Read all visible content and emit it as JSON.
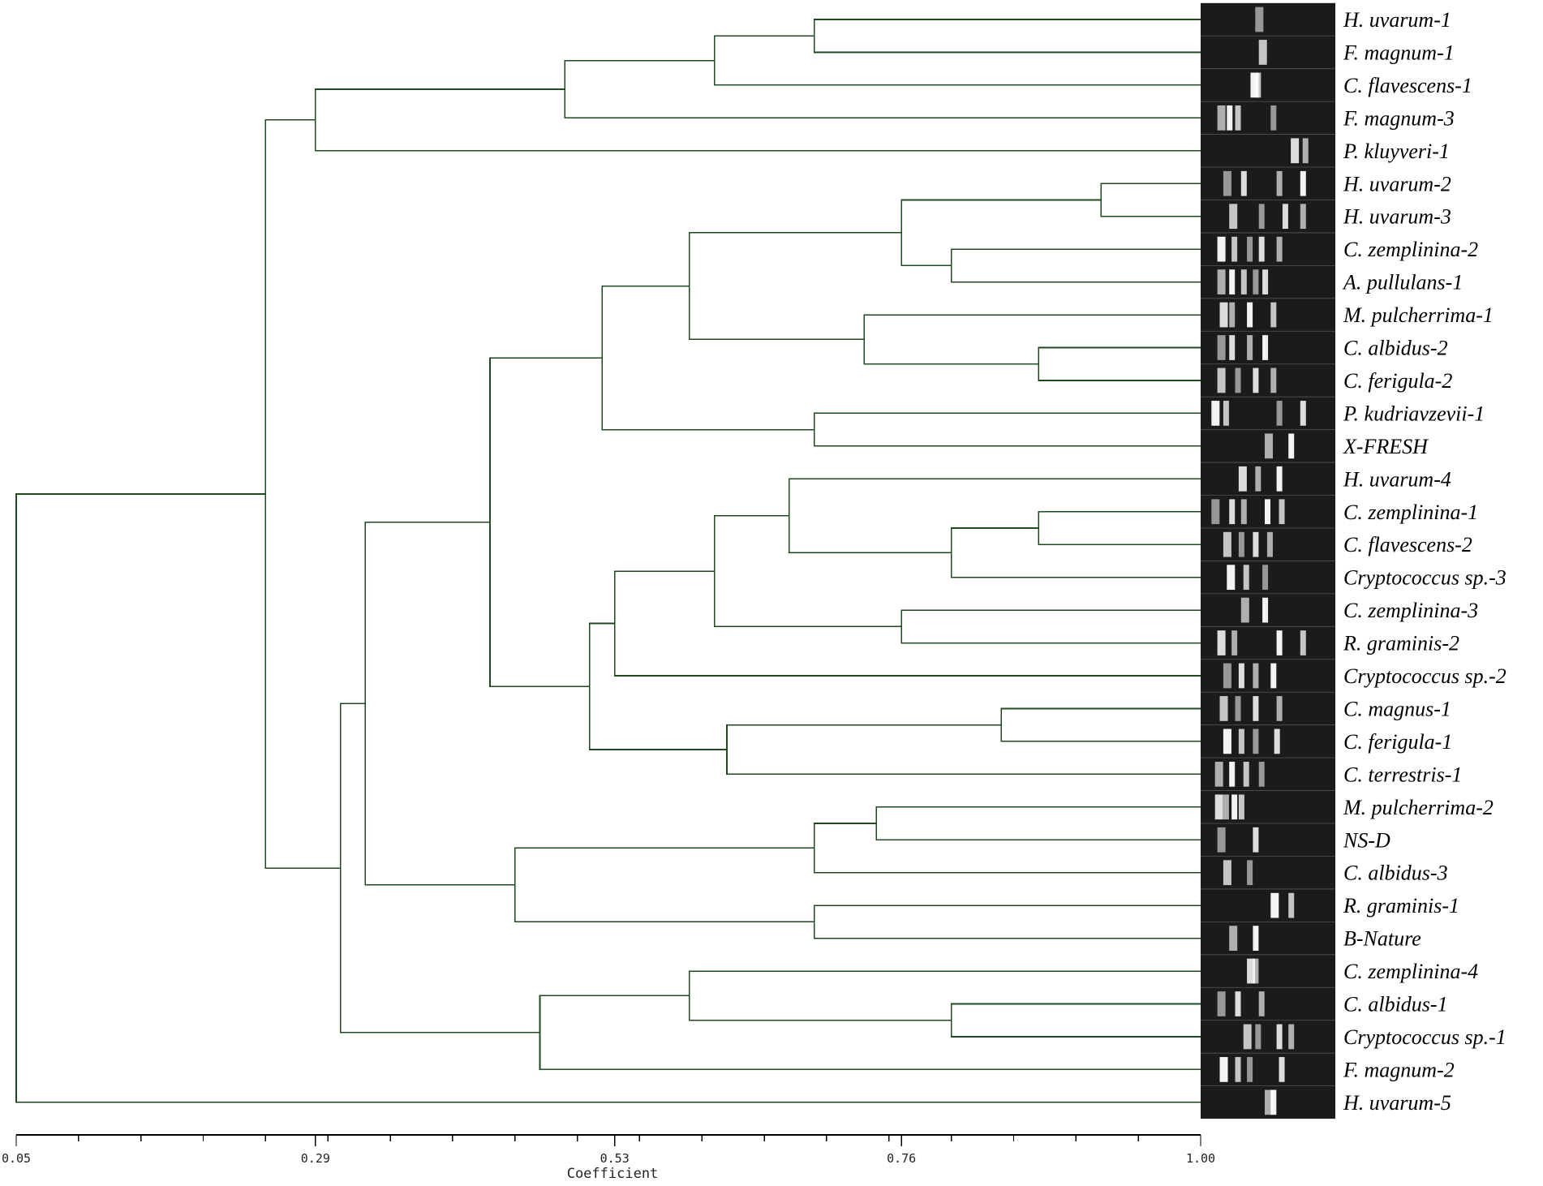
{
  "chart_data": {
    "type": "dendrogram",
    "xlabel": "Coefficient",
    "axis": {
      "min": 0.05,
      "max": 1.0,
      "ticks": [
        0.05,
        0.29,
        0.53,
        0.76,
        1.0
      ],
      "tick_labels": [
        "0.05",
        "0.29",
        "0.53",
        "0.76",
        "1.00"
      ],
      "minor_step": 0.05
    },
    "leaves": [
      "H. uvarum-1",
      "F. magnum-1",
      "C. flavescens-1",
      "F. magnum-3",
      "P. kluyveri-1",
      "H. uvarum-2",
      "H. uvarum-3",
      "C. zemplinina-2",
      "A. pullulans-1",
      "M. pulcherrima-1",
      "C. albidus-2",
      "C. ferigula-2",
      "P. kudriavzevii-1",
      "X-FRESH",
      "H. uvarum-4",
      "C. zemplinina-1",
      "C. flavescens-2",
      "Cryptococcus sp.-3",
      "C. zemplinina-3",
      "R. graminis-2",
      "Cryptococcus sp.-2",
      "C. magnus-1",
      "C. ferigula-1",
      "C. terrestris-1",
      "M. pulcherrima-2",
      "NS-D",
      "C. albidus-3",
      "R. graminis-1",
      "B-Nature",
      "C. zemplinina-4",
      "C. albidus-1",
      "Cryptococcus sp.-1",
      "F. magnum-2",
      "H. uvarum-5"
    ],
    "merges": [
      {
        "a": "H. uvarum-1",
        "b": "F. magnum-1",
        "coef": 0.69
      },
      {
        "a": "N0",
        "b": "C. flavescens-1",
        "coef": 0.61
      },
      {
        "a": "N1",
        "b": "F. magnum-3",
        "coef": 0.49
      },
      {
        "a": "N2",
        "b": "P. kluyveri-1",
        "coef": 0.29
      },
      {
        "a": "H. uvarum-2",
        "b": "H. uvarum-3",
        "coef": 0.92
      },
      {
        "a": "C. zemplinina-2",
        "b": "A. pullulans-1",
        "coef": 0.8
      },
      {
        "a": "N4",
        "b": "N5",
        "coef": 0.76
      },
      {
        "a": "C. albidus-2",
        "b": "C. ferigula-2",
        "coef": 0.87
      },
      {
        "a": "M. pulcherrima-1",
        "b": "N7",
        "coef": 0.73
      },
      {
        "a": "N6",
        "b": "N8",
        "coef": 0.59
      },
      {
        "a": "P. kudriavzevii-1",
        "b": "X-FRESH",
        "coef": 0.69
      },
      {
        "a": "N9",
        "b": "N10",
        "coef": 0.52
      },
      {
        "a": "C. zemplinina-1",
        "b": "C. flavescens-2",
        "coef": 0.87
      },
      {
        "a": "N12",
        "b": "Cryptococcus sp.-3",
        "coef": 0.8
      },
      {
        "a": "H. uvarum-4",
        "b": "N13",
        "coef": 0.67
      },
      {
        "a": "C. zemplinina-3",
        "b": "R. graminis-2",
        "coef": 0.76
      },
      {
        "a": "N14",
        "b": "N15",
        "coef": 0.61
      },
      {
        "a": "N16",
        "b": "Cryptococcus sp.-2",
        "coef": 0.53
      },
      {
        "a": "C. magnus-1",
        "b": "C. ferigula-1",
        "coef": 0.84
      },
      {
        "a": "N18",
        "b": "C. terrestris-1",
        "coef": 0.62
      },
      {
        "a": "N17",
        "b": "N19",
        "coef": 0.51
      },
      {
        "a": "N11",
        "b": "N20",
        "coef": 0.43
      },
      {
        "a": "M. pulcherrima-2",
        "b": "NS-D",
        "coef": 0.74
      },
      {
        "a": "N22",
        "b": "C. albidus-3",
        "coef": 0.69
      },
      {
        "a": "R. graminis-1",
        "b": "B-Nature",
        "coef": 0.69
      },
      {
        "a": "N23",
        "b": "N24",
        "coef": 0.45
      },
      {
        "a": "N21",
        "b": "N25",
        "coef": 0.33
      },
      {
        "a": "C. albidus-1",
        "b": "Cryptococcus sp.-1",
        "coef": 0.8
      },
      {
        "a": "C. zemplinina-4",
        "b": "N27",
        "coef": 0.59
      },
      {
        "a": "N28",
        "b": "F. magnum-2",
        "coef": 0.47
      },
      {
        "a": "N26",
        "b": "N29",
        "coef": 0.31
      },
      {
        "a": "N3",
        "b": "N30",
        "coef": 0.25
      },
      {
        "a": "N31",
        "b": "H. uvarum-5",
        "coef": 0.05
      }
    ],
    "gel_bands": [
      [
        0.42
      ],
      [
        0.45
      ],
      [
        0.38,
        0.42
      ],
      [
        0.1,
        0.18,
        0.25,
        0.55
      ],
      [
        0.72,
        0.82
      ],
      [
        0.15,
        0.3,
        0.6,
        0.8
      ],
      [
        0.2,
        0.45,
        0.65,
        0.8
      ],
      [
        0.1,
        0.22,
        0.35,
        0.45,
        0.6
      ],
      [
        0.1,
        0.2,
        0.3,
        0.4,
        0.48
      ],
      [
        0.12,
        0.2,
        0.35,
        0.55
      ],
      [
        0.1,
        0.2,
        0.35,
        0.48
      ],
      [
        0.1,
        0.25,
        0.4,
        0.55
      ],
      [
        0.05,
        0.15,
        0.6,
        0.8
      ],
      [
        0.5,
        0.7
      ],
      [
        0.28,
        0.42,
        0.6
      ],
      [
        0.05,
        0.2,
        0.3,
        0.5,
        0.62
      ],
      [
        0.15,
        0.28,
        0.4,
        0.52
      ],
      [
        0.18,
        0.32,
        0.48
      ],
      [
        0.3,
        0.48
      ],
      [
        0.1,
        0.22,
        0.6,
        0.8
      ],
      [
        0.15,
        0.28,
        0.4,
        0.55
      ],
      [
        0.12,
        0.25,
        0.4,
        0.6
      ],
      [
        0.15,
        0.28,
        0.4,
        0.58
      ],
      [
        0.08,
        0.2,
        0.32,
        0.45
      ],
      [
        0.08,
        0.15,
        0.22,
        0.28
      ],
      [
        0.1,
        0.4
      ],
      [
        0.15,
        0.35
      ],
      [
        0.55,
        0.7
      ],
      [
        0.2,
        0.4
      ],
      [
        0.35,
        0.4
      ],
      [
        0.1,
        0.25,
        0.45
      ],
      [
        0.32,
        0.42,
        0.6,
        0.7
      ],
      [
        0.12,
        0.25,
        0.35,
        0.62
      ],
      [
        0.5,
        0.55
      ]
    ]
  }
}
